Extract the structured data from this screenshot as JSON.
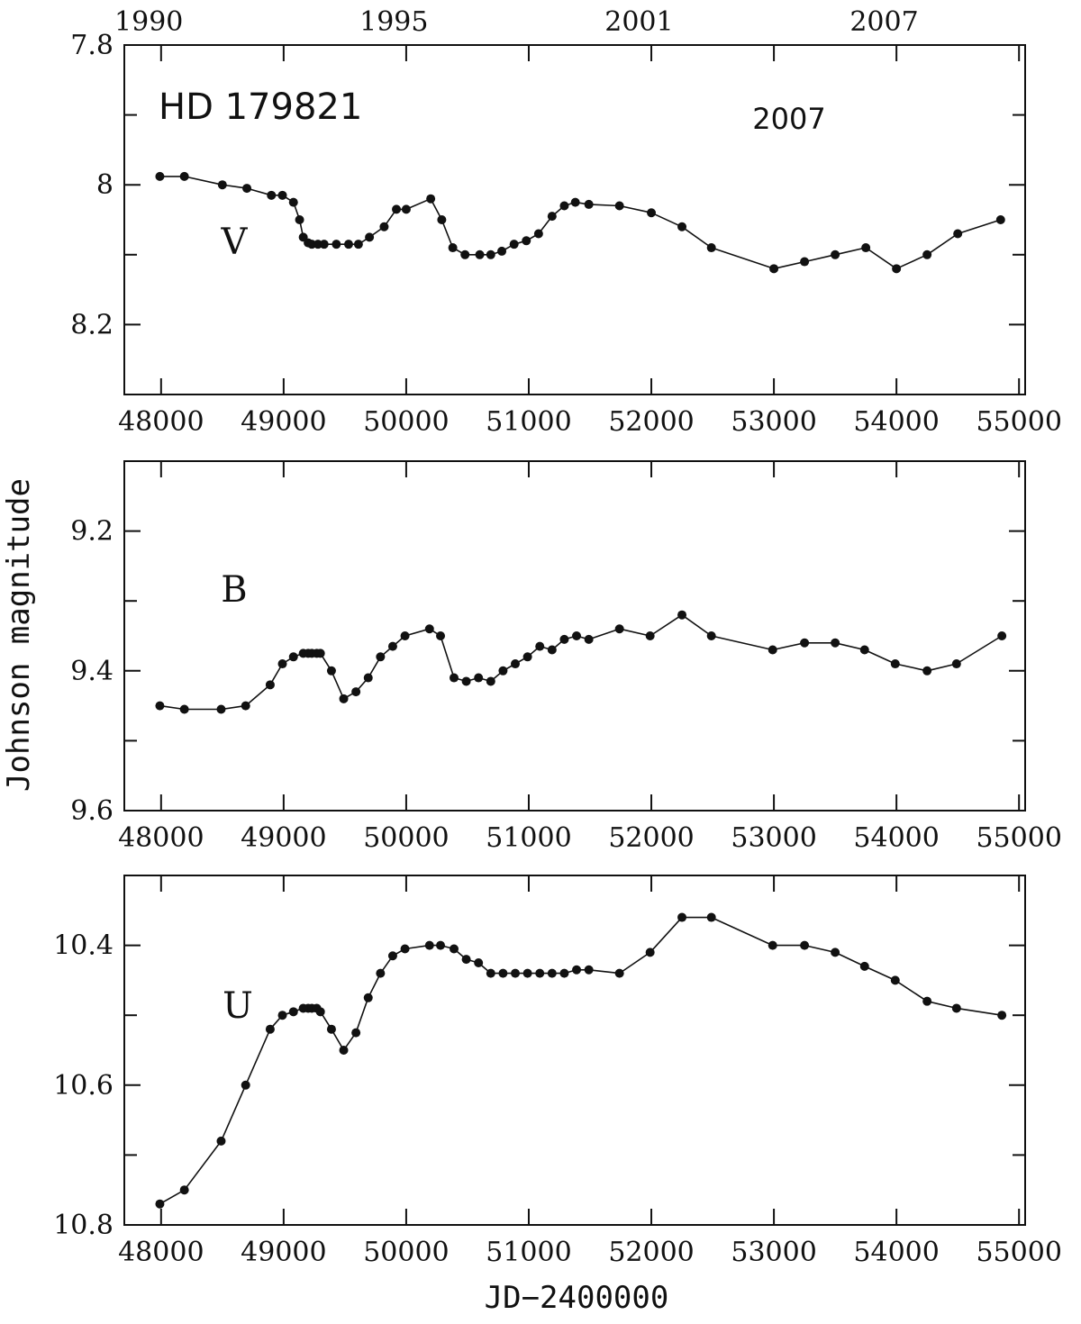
{
  "chart_data": {
    "type": "line",
    "title": "HD 179821",
    "xlabel": "JD−2400000",
    "ylabel": "Johnson magnitude",
    "annotation": "2007",
    "top_axis_labels": [
      "1990",
      "1995",
      "2001",
      "2007"
    ],
    "top_axis_label_jd": [
      47900,
      49900,
      51900,
      53900
    ],
    "xlim": [
      47700,
      55050
    ],
    "x_ticks": [
      48000,
      49000,
      50000,
      51000,
      52000,
      53000,
      54000,
      55000
    ],
    "x_tick_labels": [
      "48000",
      "49000",
      "50000",
      "51000",
      "52000",
      "53000",
      "54000",
      "55000"
    ],
    "panels": [
      {
        "name": "V",
        "ylim": [
          7.8,
          8.3
        ],
        "inverted": true,
        "y_labeled_ticks": [
          7.8,
          8.0,
          8.2
        ],
        "y_tick_labels": [
          "7.8",
          "8",
          "8.2"
        ],
        "y_minor_ticks": [
          7.9,
          8.1
        ],
        "x": [
          47990,
          48190,
          48500,
          48700,
          48900,
          48990,
          49080,
          49130,
          49160,
          49200,
          49230,
          49280,
          49330,
          49430,
          49530,
          49610,
          49700,
          49820,
          49920,
          50000,
          50200,
          50290,
          50380,
          50480,
          50600,
          50690,
          50780,
          50880,
          50980,
          51080,
          51190,
          51290,
          51380,
          51490,
          51740,
          52000,
          52250,
          52490,
          53000,
          53250,
          53500,
          53750,
          54000,
          54250,
          54500,
          54850
        ],
        "y": [
          7.988,
          7.988,
          8.0,
          8.005,
          8.015,
          8.015,
          8.025,
          8.05,
          8.075,
          8.083,
          8.085,
          8.085,
          8.085,
          8.085,
          8.085,
          8.085,
          8.075,
          8.06,
          8.035,
          8.035,
          8.02,
          8.05,
          8.09,
          8.1,
          8.1,
          8.1,
          8.095,
          8.085,
          8.08,
          8.07,
          8.045,
          8.03,
          8.025,
          8.028,
          8.03,
          8.04,
          8.06,
          8.09,
          8.12,
          8.11,
          8.1,
          8.09,
          8.12,
          8.1,
          8.07,
          8.05
        ]
      },
      {
        "name": "B",
        "ylim": [
          9.1,
          9.6
        ],
        "inverted": true,
        "y_labeled_ticks": [
          9.2,
          9.4,
          9.6
        ],
        "y_tick_labels": [
          "9.2",
          "9.4",
          "9.6"
        ],
        "y_minor_ticks": [
          9.1,
          9.3,
          9.5
        ],
        "x": [
          47990,
          48190,
          48490,
          48690,
          48890,
          48990,
          49080,
          49160,
          49200,
          49230,
          49270,
          49300,
          49390,
          49490,
          49590,
          49690,
          49790,
          49890,
          49990,
          50190,
          50280,
          50390,
          50490,
          50590,
          50690,
          50790,
          50890,
          50990,
          51090,
          51190,
          51290,
          51390,
          51490,
          51740,
          51990,
          52250,
          52490,
          52990,
          53250,
          53500,
          53740,
          53990,
          54250,
          54490,
          54860
        ],
        "y": [
          9.45,
          9.455,
          9.455,
          9.45,
          9.42,
          9.39,
          9.38,
          9.375,
          9.375,
          9.375,
          9.375,
          9.375,
          9.4,
          9.44,
          9.43,
          9.41,
          9.38,
          9.365,
          9.35,
          9.34,
          9.35,
          9.41,
          9.415,
          9.41,
          9.415,
          9.4,
          9.39,
          9.38,
          9.365,
          9.37,
          9.355,
          9.35,
          9.355,
          9.34,
          9.35,
          9.32,
          9.35,
          9.37,
          9.36,
          9.36,
          9.37,
          9.39,
          9.4,
          9.39,
          9.35
        ]
      },
      {
        "name": "U",
        "ylim": [
          10.3,
          10.8
        ],
        "inverted": true,
        "y_labeled_ticks": [
          10.4,
          10.6,
          10.8
        ],
        "y_tick_labels": [
          "10.4",
          "10.6",
          "10.8"
        ],
        "y_minor_ticks": [
          10.3,
          10.5,
          10.7
        ],
        "x": [
          47990,
          48190,
          48490,
          48690,
          48890,
          48990,
          49080,
          49160,
          49200,
          49230,
          49270,
          49300,
          49390,
          49490,
          49590,
          49690,
          49790,
          49890,
          49990,
          50190,
          50280,
          50390,
          50490,
          50590,
          50690,
          50790,
          50890,
          50990,
          51090,
          51190,
          51290,
          51390,
          51490,
          51740,
          51990,
          52250,
          52490,
          52990,
          53250,
          53500,
          53740,
          53990,
          54250,
          54490,
          54860
        ],
        "y": [
          10.77,
          10.75,
          10.68,
          10.6,
          10.52,
          10.5,
          10.495,
          10.49,
          10.49,
          10.49,
          10.49,
          10.495,
          10.52,
          10.55,
          10.525,
          10.475,
          10.44,
          10.415,
          10.405,
          10.4,
          10.4,
          10.405,
          10.42,
          10.425,
          10.44,
          10.44,
          10.44,
          10.44,
          10.44,
          10.44,
          10.44,
          10.435,
          10.435,
          10.44,
          10.41,
          10.36,
          10.36,
          10.4,
          10.4,
          10.41,
          10.43,
          10.45,
          10.48,
          10.49,
          10.5
        ]
      }
    ]
  }
}
